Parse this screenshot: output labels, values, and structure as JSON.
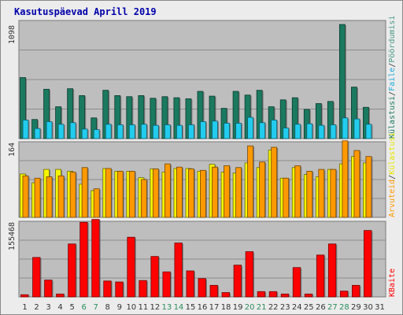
{
  "window_title": "Kasutuspäevad Aprill 2019",
  "colors": {
    "background": "#ececec",
    "panel": "#bebebe",
    "grid": "#8c8c8c",
    "title": "#0000aa",
    "visits": "#1a7a60",
    "files": "#22ccee",
    "pages": "#4a9a8a",
    "hits": "#ff9900",
    "hosts": "#f5f500",
    "kbytes": "#ff0000",
    "weekend_label": "#2c8c5c",
    "weekday_label": "#333333"
  },
  "chart_data": [
    {
      "type": "bar",
      "panel": "top",
      "y_tick_label": "1098",
      "ylim": [
        0,
        1098
      ],
      "categories": [
        "1",
        "2",
        "3",
        "4",
        "5",
        "6",
        "7",
        "8",
        "9",
        "10",
        "11",
        "12",
        "13",
        "14",
        "15",
        "16",
        "17",
        "18",
        "19",
        "20",
        "21",
        "22",
        "23",
        "24",
        "25",
        "26",
        "27",
        "28",
        "29",
        "30",
        "31"
      ],
      "legend": [
        "Külastusi",
        "/",
        "Faile",
        "/",
        "Pöördumisi"
      ],
      "series": [
        {
          "name": "Külastusi",
          "values": [
            575,
            180,
            465,
            300,
            470,
            405,
            195,
            455,
            405,
            395,
            405,
            380,
            395,
            385,
            375,
            445,
            400,
            285,
            445,
            410,
            455,
            300,
            365,
            385,
            275,
            330,
            350,
            1075,
            485,
            295,
            0
          ]
        },
        {
          "name": "Faile",
          "values": [
            175,
            95,
            160,
            135,
            150,
            90,
            85,
            135,
            130,
            130,
            135,
            125,
            130,
            125,
            130,
            160,
            165,
            145,
            145,
            200,
            150,
            175,
            100,
            135,
            140,
            125,
            130,
            195,
            185,
            135,
            0
          ]
        },
        {
          "name": "Pöördumisi",
          "values": [
            0,
            0,
            0,
            0,
            0,
            0,
            0,
            0,
            0,
            0,
            0,
            0,
            0,
            0,
            0,
            0,
            0,
            0,
            0,
            0,
            0,
            0,
            0,
            0,
            0,
            0,
            0,
            0,
            0,
            0,
            0
          ]
        }
      ]
    },
    {
      "type": "bar",
      "panel": "middle",
      "y_tick_label": "164",
      "ylim": [
        0,
        164
      ],
      "categories": [
        "1",
        "2",
        "3",
        "4",
        "5",
        "6",
        "7",
        "8",
        "9",
        "10",
        "11",
        "12",
        "13",
        "14",
        "15",
        "16",
        "17",
        "18",
        "19",
        "20",
        "21",
        "22",
        "23",
        "24",
        "25",
        "26",
        "27",
        "28",
        "29",
        "30",
        "31"
      ],
      "legend": [
        "Arvuteid",
        "/",
        "Külastusi"
      ],
      "series": [
        {
          "name": "Arvuteid",
          "values": [
            90,
            85,
            88,
            90,
            98,
            108,
            62,
            106,
            100,
            100,
            82,
            105,
            116,
            109,
            105,
            102,
            109,
            112,
            108,
            155,
            120,
            152,
            85,
            112,
            100,
            104,
            104,
            166,
            145,
            132,
            0
          ]
        },
        {
          "name": "Külastusi",
          "values": [
            94,
            75,
            104,
            104,
            100,
            72,
            58,
            106,
            100,
            100,
            86,
            105,
            98,
            106,
            106,
            100,
            115,
            98,
            96,
            118,
            108,
            146,
            85,
            108,
            93,
            88,
            104,
            116,
            132,
            118,
            0
          ]
        }
      ]
    },
    {
      "type": "bar",
      "panel": "bottom",
      "y_tick_label": "155468",
      "ylim": [
        0,
        155468
      ],
      "categories": [
        "1",
        "2",
        "3",
        "4",
        "5",
        "6",
        "7",
        "8",
        "9",
        "10",
        "11",
        "12",
        "13",
        "14",
        "15",
        "16",
        "17",
        "18",
        "19",
        "20",
        "21",
        "22",
        "23",
        "24",
        "25",
        "26",
        "27",
        "28",
        "29",
        "30",
        "31"
      ],
      "legend": [
        "KBaite"
      ],
      "series": [
        {
          "name": "KBaite",
          "values": [
            4500,
            82000,
            35000,
            6000,
            110000,
            155000,
            161000,
            33000,
            31000,
            124000,
            34000,
            84000,
            52000,
            112000,
            54000,
            38000,
            24000,
            9000,
            66000,
            94000,
            11000,
            11000,
            6000,
            61000,
            6000,
            87000,
            110000,
            12000,
            24000,
            138000,
            0
          ]
        }
      ]
    }
  ]
}
